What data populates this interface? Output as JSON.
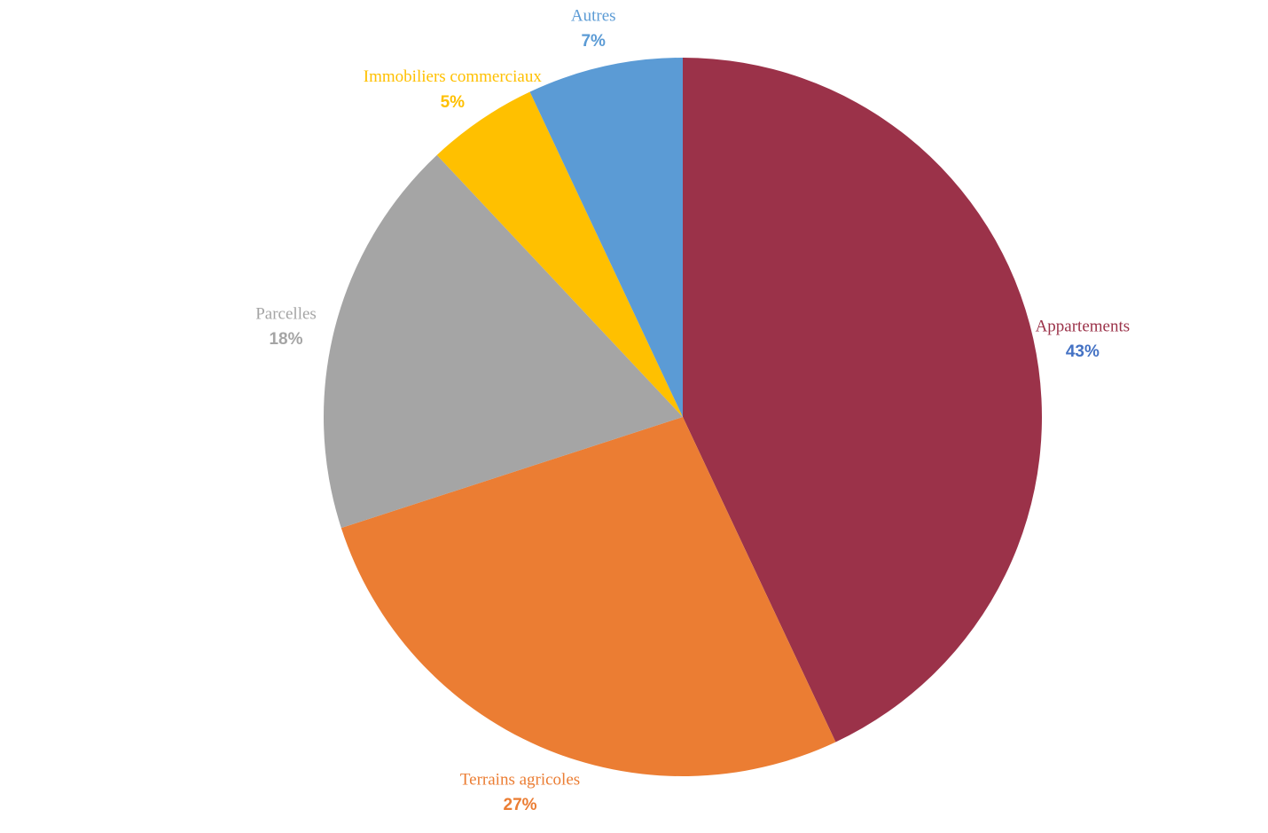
{
  "chart_data": {
    "type": "pie",
    "categories": [
      "Appartements",
      "Terrains agricoles",
      "Parcelles",
      "Immobiliers commerciaux",
      "Autres"
    ],
    "values": [
      43,
      27,
      18,
      5,
      7
    ],
    "value_labels": [
      "43%",
      "27%",
      "18%",
      "5%",
      "7%"
    ],
    "colors": [
      "#9b3249",
      "#eb7d33",
      "#a5a5a5",
      "#ffc000",
      "#5b9bd5"
    ],
    "label_colors": [
      "#9b3249",
      "#eb7d33",
      "#a5a5a5",
      "#ffc000",
      "#5b9bd5"
    ],
    "value_label_colors": [
      "#4472c4",
      "#eb7d33",
      "#a5a5a5",
      "#ffc000",
      "#5b9bd5"
    ]
  }
}
